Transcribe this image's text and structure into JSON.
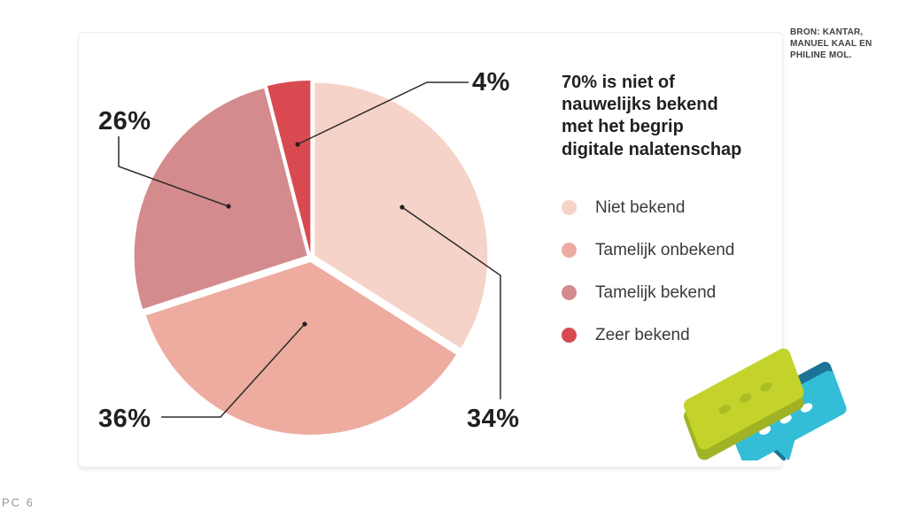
{
  "source": {
    "text": "BRON: KANTAR, MANUEL KAAL EN PHILINE MOL."
  },
  "footer": {
    "page_label": "PC 6"
  },
  "chart_data": {
    "type": "pie",
    "title": "70% is niet of nauwelijks bekend met het begrip digitale nalatenschap",
    "unit": "%",
    "direction": "clockwise",
    "start_angle_deg": 0,
    "legend_position": "right-of-chart",
    "slices": [
      {
        "label": "Niet bekend",
        "value": 34,
        "pct_label": "34%",
        "color": "#F5D3C8"
      },
      {
        "label": "Tamelijk onbekend",
        "value": 36,
        "pct_label": "36%",
        "color": "#EDAC9F"
      },
      {
        "label": "Tamelijk bekend",
        "value": 26,
        "pct_label": "26%",
        "color": "#D48B8D"
      },
      {
        "label": "Zeer bekend",
        "value": 4,
        "pct_label": "4%",
        "color": "#D84A50"
      }
    ]
  },
  "illustration": {
    "name": "chat-bubbles",
    "colors": {
      "lime": "#C3D32B",
      "lime_dark": "#9FB324",
      "lime_dot": "#A9BE25",
      "cyan": "#33BDD7",
      "cyan_dark": "#1B7496",
      "dot_white": "#FFFFFF"
    }
  },
  "theme": {
    "text_dark": "#231F20",
    "line": "#2B2B2B",
    "card_border": "#ECECEC"
  }
}
